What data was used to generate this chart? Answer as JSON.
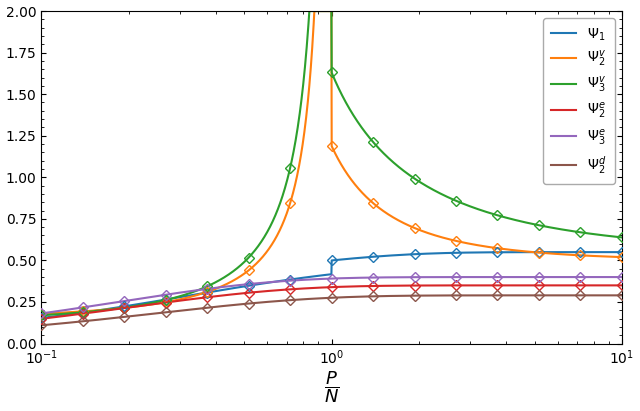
{
  "colors": {
    "psi1": "#1f77b4",
    "psi2v": "#ff7f0e",
    "psi3v": "#2ca02c",
    "psi2e": "#d62728",
    "psi3e": "#9467bd",
    "psi2d": "#8c564b"
  },
  "legend_labels": [
    "$\\Psi_1$",
    "$\\Psi_2^v$",
    "$\\Psi_3^v$",
    "$\\Psi_2^e$",
    "$\\Psi_3^e$",
    "$\\Psi_2^d$"
  ],
  "xlim": [
    0.1,
    10.0
  ],
  "ylim": [
    0.0,
    2.0
  ],
  "yticks": [
    0.0,
    0.25,
    0.5,
    0.75,
    1.0,
    1.25,
    1.5,
    1.75,
    2.0
  ],
  "marker": "D",
  "markersize": 5,
  "n_curve": 2000,
  "n_markers": 15
}
